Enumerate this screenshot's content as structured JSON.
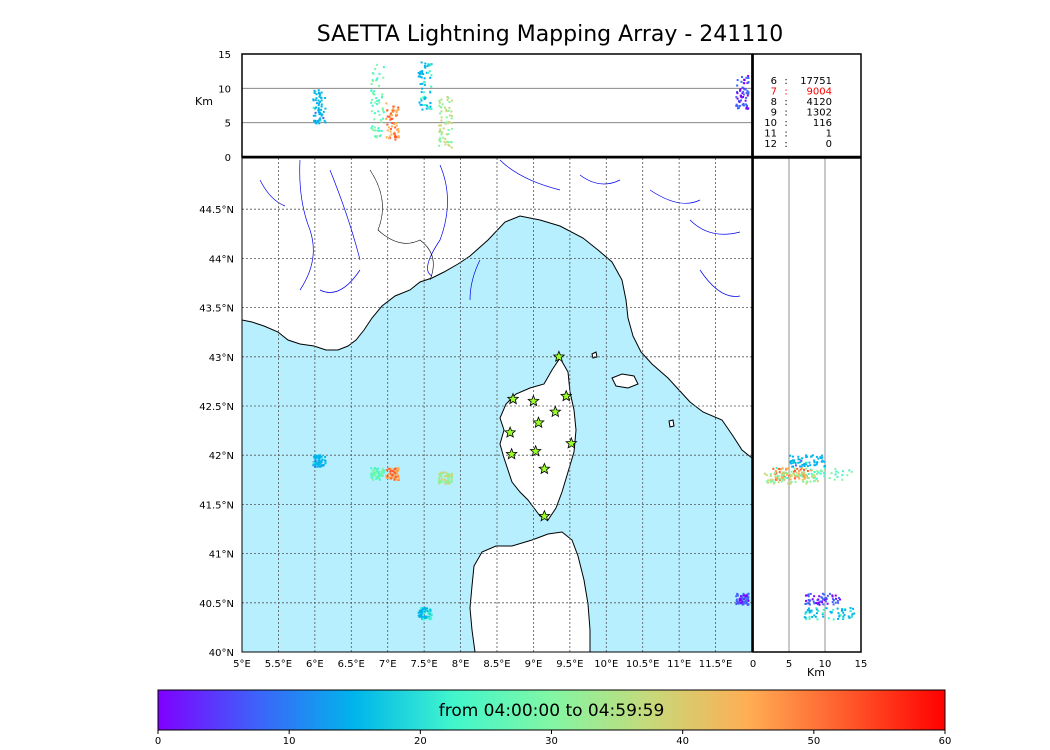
{
  "title": "SAETTA Lightning Mapping Array - 241110",
  "colors": {
    "sea": "#b7efff",
    "land": "#ffffff",
    "coast": "#000000",
    "river": "#0000ee",
    "border": "#000000",
    "station_fill": "#9cff2a",
    "highlight": "#ff0000"
  },
  "icons": {
    "station": "star-icon"
  },
  "alt_panel": {
    "ylabel": "Km",
    "yticks": [
      "15",
      "10",
      "5",
      "0"
    ],
    "ylim": [
      0,
      15
    ],
    "gridlines": [
      5,
      10
    ]
  },
  "side_panel": {
    "xlabel": "Km",
    "xticks": [
      "0",
      "5",
      "10",
      "15"
    ],
    "xlim": [
      0,
      15
    ],
    "gridlines": [
      5,
      10
    ]
  },
  "map": {
    "lon_range": [
      5,
      12
    ],
    "lat_range": [
      40,
      45
    ],
    "lon_ticks": [
      "5°E",
      "5.5°E",
      "6°E",
      "6.5°E",
      "7°E",
      "7.5°E",
      "8°E",
      "8.5°E",
      "9°E",
      "9.5°E",
      "10°E",
      "10.5°E",
      "11°E",
      "11.5°E"
    ],
    "lat_ticks": [
      "40°N",
      "40.5°N",
      "41°N",
      "41.5°N",
      "42°N",
      "42.5°N",
      "43°N",
      "43.5°N",
      "44°N",
      "44.5°N"
    ],
    "grid": "dotted"
  },
  "stats": [
    {
      "n": "6",
      "sep": ":",
      "count": "17751",
      "highlight": false
    },
    {
      "n": "7",
      "sep": ":",
      "count": "9004",
      "highlight": true
    },
    {
      "n": "8",
      "sep": ":",
      "count": "4120",
      "highlight": false
    },
    {
      "n": "9",
      "sep": ":",
      "count": "1302",
      "highlight": false
    },
    {
      "n": "10",
      "sep": ":",
      "count": "116",
      "highlight": false
    },
    {
      "n": "11",
      "sep": ":",
      "count": "1",
      "highlight": false
    },
    {
      "n": "12",
      "sep": ":",
      "count": "0",
      "highlight": false
    }
  ],
  "stations": [
    {
      "lon": 9.35,
      "lat": 43.0
    },
    {
      "lon": 8.72,
      "lat": 42.57
    },
    {
      "lon": 9.0,
      "lat": 42.55
    },
    {
      "lon": 9.45,
      "lat": 42.6
    },
    {
      "lon": 9.3,
      "lat": 42.44
    },
    {
      "lon": 9.07,
      "lat": 42.33
    },
    {
      "lon": 8.68,
      "lat": 42.23
    },
    {
      "lon": 9.52,
      "lat": 42.12
    },
    {
      "lon": 9.03,
      "lat": 42.04
    },
    {
      "lon": 8.7,
      "lat": 42.01
    },
    {
      "lon": 9.15,
      "lat": 41.86
    },
    {
      "lon": 9.15,
      "lat": 41.38
    }
  ],
  "lightning_clusters": [
    {
      "lon": 6.05,
      "lat": 41.95,
      "alt_min": 5,
      "alt_max": 10,
      "time": 15
    },
    {
      "lon": 6.85,
      "lat": 41.82,
      "alt_min": 3,
      "alt_max": 14,
      "time": 27
    },
    {
      "lon": 7.05,
      "lat": 41.82,
      "alt_min": 2.5,
      "alt_max": 8,
      "time": 48
    },
    {
      "lon": 7.5,
      "lat": 40.4,
      "alt_min": 7,
      "alt_max": 14,
      "time": 17
    },
    {
      "lon": 7.78,
      "lat": 41.78,
      "alt_min": 1.5,
      "alt_max": 9,
      "time": 35
    },
    {
      "lon": 11.85,
      "lat": 40.55,
      "alt_min": 7,
      "alt_max": 12,
      "time": 5
    }
  ],
  "colorbar": {
    "label": "from 04:00:00 to 04:59:59",
    "ticks": [
      "0",
      "10",
      "20",
      "30",
      "40",
      "50",
      "60"
    ],
    "range": [
      0,
      60
    ],
    "stops": [
      "#7f00ff",
      "#3e62fa",
      "#00b5eb",
      "#41f6cc",
      "#82f6a4",
      "#c6d97a",
      "#ffae54",
      "#ff5a2b",
      "#ff0000"
    ]
  }
}
